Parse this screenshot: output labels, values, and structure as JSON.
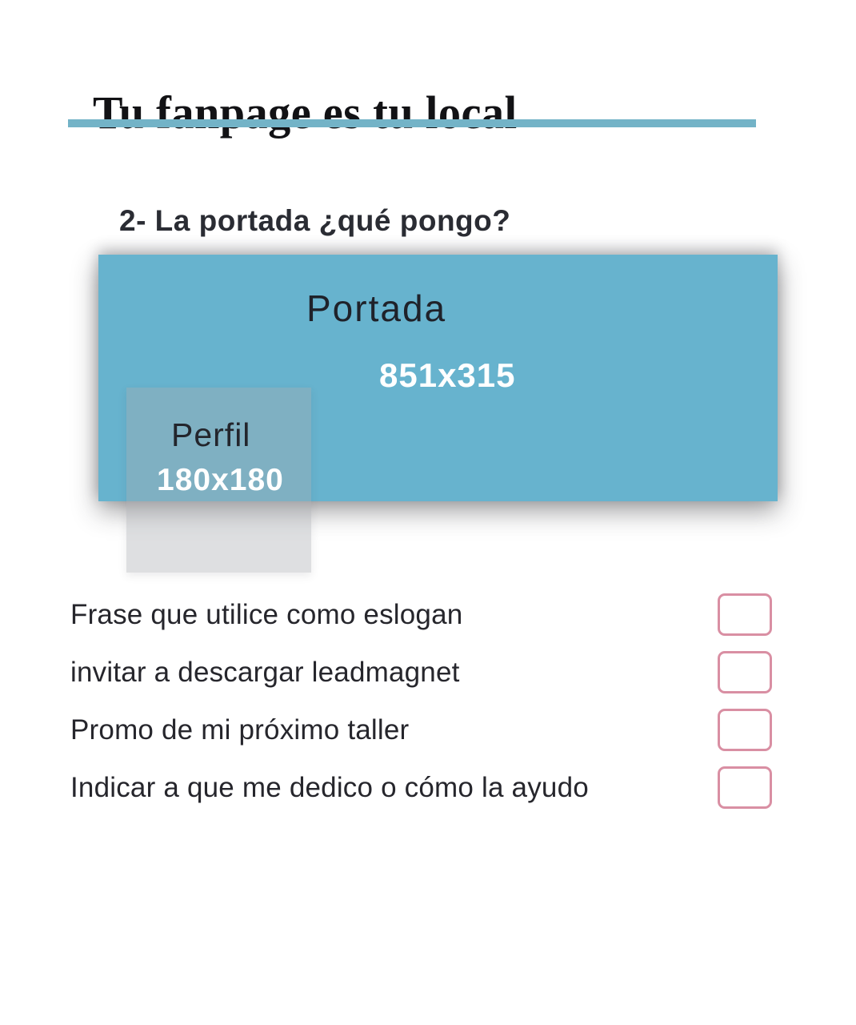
{
  "page": {
    "title": "Tu fanpage es tu local",
    "section_heading": "2- La portada ¿qué pongo?"
  },
  "diagram": {
    "cover": {
      "label": "Portada",
      "dimensions": "851x315"
    },
    "profile": {
      "label": "Perfil",
      "dimensions": "180x180"
    }
  },
  "checklist": {
    "items": [
      {
        "label": "Frase que utilice como eslogan",
        "checked": false
      },
      {
        "label": "invitar a descargar leadmagnet",
        "checked": false
      },
      {
        "label": "Promo de mi próximo taller",
        "checked": false
      },
      {
        "label": "Indicar a que me dedico o cómo la ayudo",
        "checked": false
      }
    ]
  },
  "colors": {
    "accent_teal": "#67b3ce",
    "underline_teal": "#73b3c7",
    "checkbox_pink": "#d98fa3",
    "text_dark": "#26262c"
  }
}
